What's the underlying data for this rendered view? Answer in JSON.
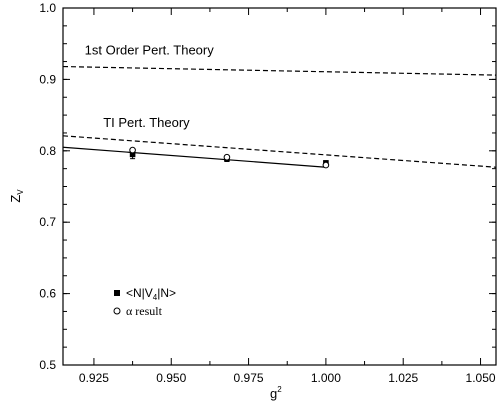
{
  "chart_data": {
    "type": "line",
    "title": "",
    "xlabel": "g",
    "xlabel_sup": "2",
    "ylabel": "Z",
    "ylabel_sub": "V",
    "xlim": [
      0.915,
      1.055
    ],
    "ylim": [
      0.5,
      1.0
    ],
    "xticks": [
      0.925,
      0.95,
      0.975,
      1.0,
      1.025,
      1.05
    ],
    "xtick_labels": [
      "0.925",
      "0.950",
      "0.975",
      "1.000",
      "1.025",
      "1.050"
    ],
    "yticks": [
      0.5,
      0.6,
      0.7,
      0.8,
      0.9,
      1.0
    ],
    "ytick_labels": [
      "0.5",
      "0.6",
      "0.7",
      "0.8",
      "0.9",
      "1.0"
    ],
    "grid": false,
    "annotations": [
      {
        "text": "1st Order Pert. Theory",
        "x": 0.922,
        "y": 0.935
      },
      {
        "text": "TI Pert. Theory",
        "x": 0.928,
        "y": 0.833
      }
    ],
    "series": [
      {
        "style": "dashed",
        "x": [
          0.915,
          1.055
        ],
        "y": [
          0.918,
          0.906
        ]
      },
      {
        "style": "dashed",
        "x": [
          0.915,
          1.055
        ],
        "y": [
          0.821,
          0.777
        ]
      },
      {
        "style": "solid",
        "x": [
          0.915,
          1.0
        ],
        "y": [
          0.805,
          0.777
        ]
      },
      {
        "name": "<N|V4|N>",
        "style": "filled-square",
        "x": [
          0.9375,
          0.968,
          1.0
        ],
        "y": [
          0.795,
          0.789,
          0.783
        ],
        "err": [
          0.006,
          0.004,
          0.003
        ]
      },
      {
        "name": "α result",
        "style": "open-circle",
        "x": [
          0.9375,
          0.968,
          1.0
        ],
        "y": [
          0.801,
          0.791,
          0.78
        ]
      }
    ],
    "legend": {
      "position": "bottom-left",
      "items": [
        {
          "marker": "filled-square",
          "label_pre": "<N|V",
          "label_sub": "4",
          "label_post": "|N>"
        },
        {
          "marker": "open-circle",
          "label": "α result"
        }
      ]
    }
  }
}
